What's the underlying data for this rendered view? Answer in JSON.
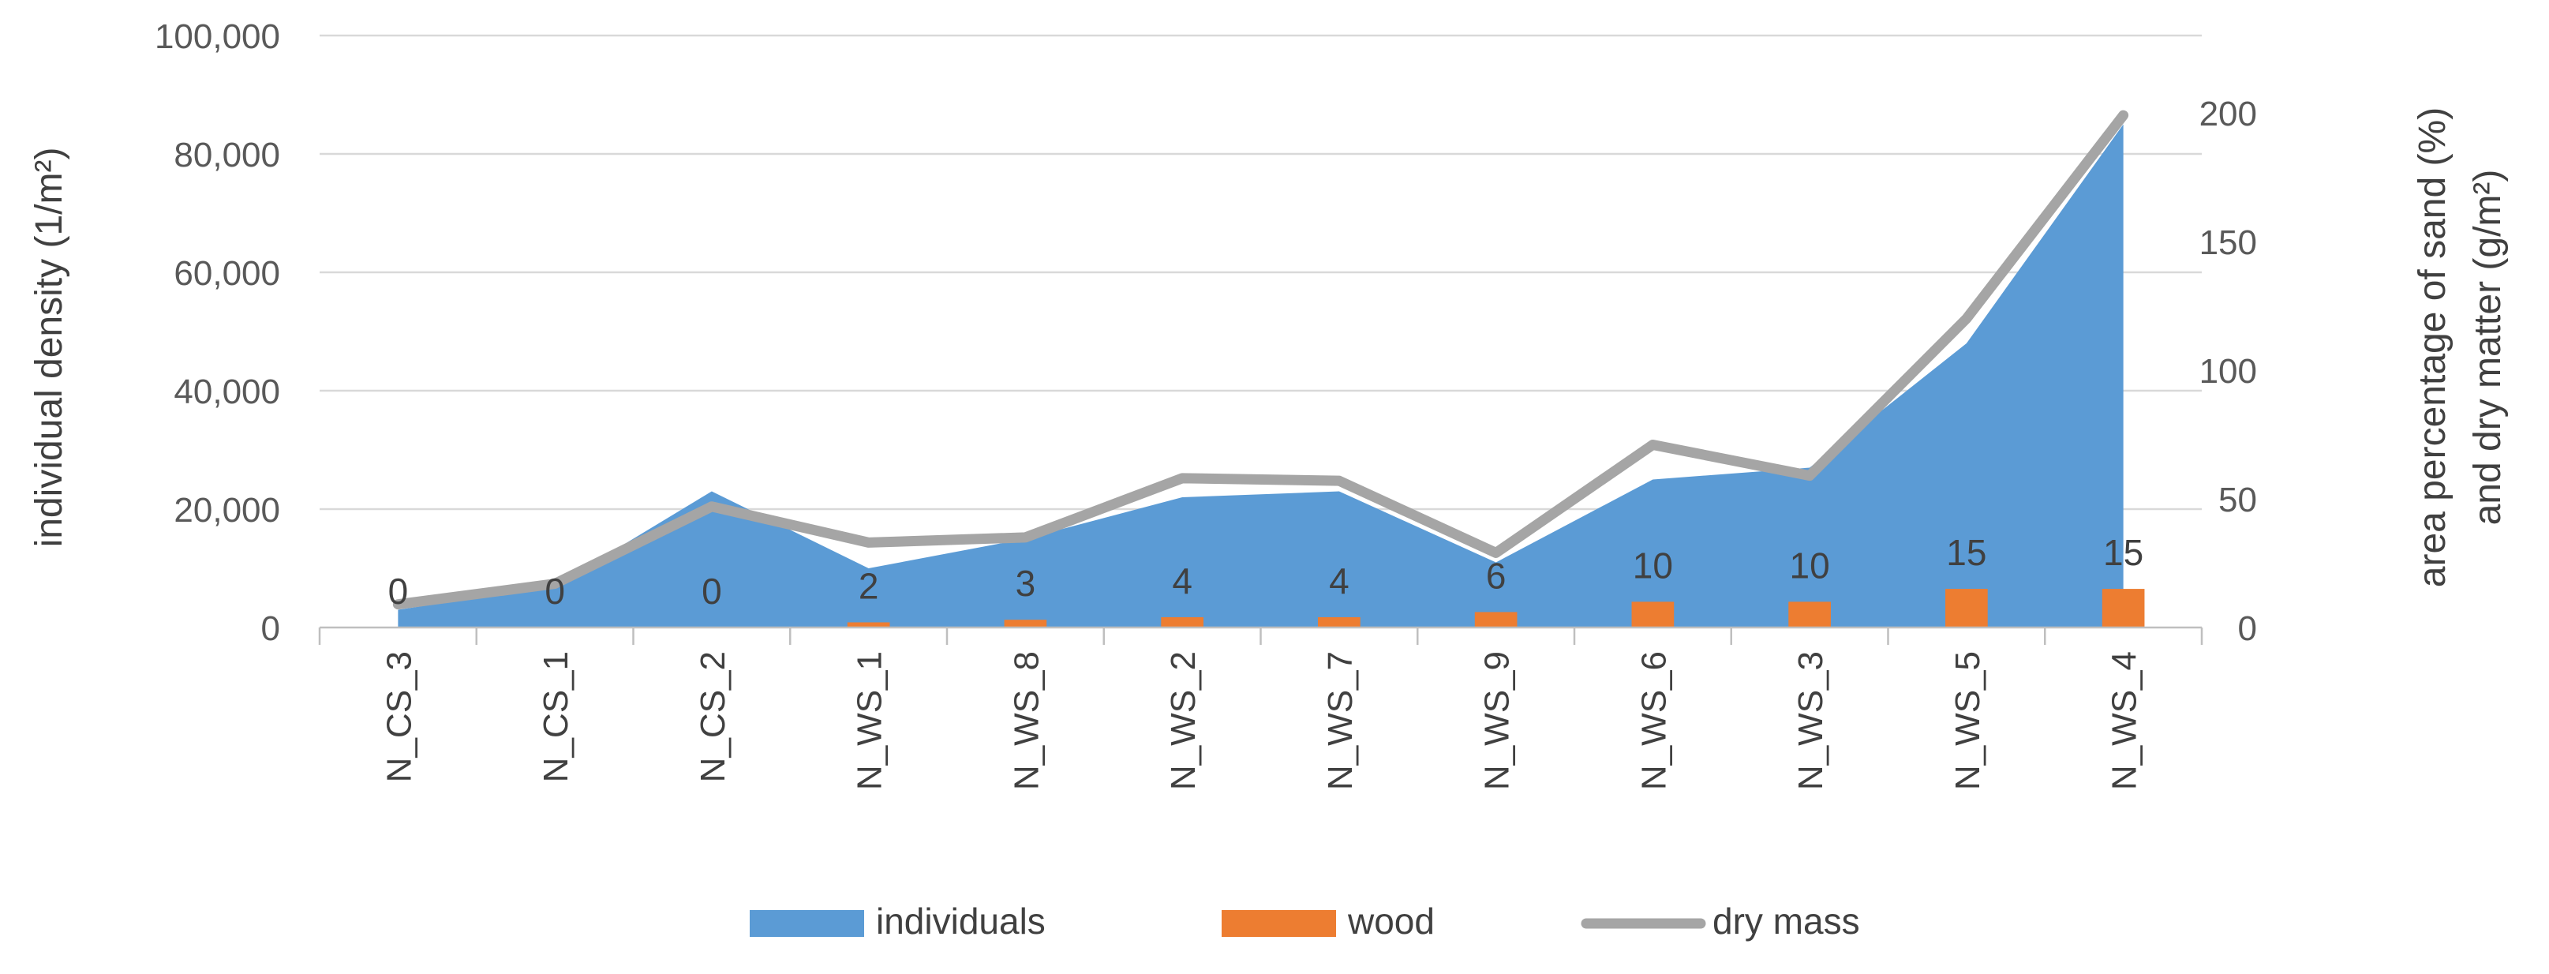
{
  "chart_data": {
    "type": "area",
    "categories": [
      "N_CS_3",
      "N_CS_1",
      "N_CS_2",
      "N_WS_1",
      "N_WS_8",
      "N_WS_2",
      "N_WS_7",
      "N_WS_9",
      "N_WS_6",
      "N_WS_3",
      "N_WS_5",
      "N_WS_4"
    ],
    "y_left": {
      "label": "individual density (1/m²)",
      "lim": [
        0,
        100000
      ],
      "ticks": [
        0,
        20000,
        40000,
        60000,
        80000,
        100000
      ],
      "tick_labels": [
        "0",
        "20,000",
        "40,000",
        "60,000",
        "80,000",
        "100,000"
      ]
    },
    "y_right": {
      "label_line1": "area percentage of sand (%)",
      "label_line2": "and dry matter (g/m²)",
      "lim": [
        0,
        230
      ],
      "ticks": [
        0,
        50,
        100,
        150,
        200
      ],
      "tick_labels": [
        "0",
        "50",
        "100",
        "150",
        "200"
      ]
    },
    "series": [
      {
        "name": "individuals",
        "kind": "area",
        "axis": "left",
        "color": "#5b9bd5",
        "values": [
          3000,
          7000,
          23000,
          10000,
          15000,
          22000,
          23000,
          11000,
          25000,
          27000,
          48000,
          85000
        ]
      },
      {
        "name": "wood",
        "kind": "bar",
        "axis": "right",
        "color": "#ed7d31",
        "values": [
          0,
          0,
          0,
          2,
          3,
          4,
          4,
          6,
          10,
          10,
          15,
          15
        ],
        "labels": [
          "0",
          "0",
          "0",
          "2",
          "3",
          "4",
          "4",
          "6",
          "10",
          "10",
          "15",
          "15"
        ]
      },
      {
        "name": "dry mass",
        "kind": "line",
        "axis": "right",
        "color": "#a5a5a5",
        "values": [
          9,
          17,
          47,
          33,
          35,
          58,
          57,
          29,
          71,
          59,
          120,
          199
        ]
      }
    ],
    "grid": true,
    "legend": {
      "position": "bottom",
      "entries": [
        "individuals",
        "wood",
        "dry mass"
      ]
    }
  }
}
